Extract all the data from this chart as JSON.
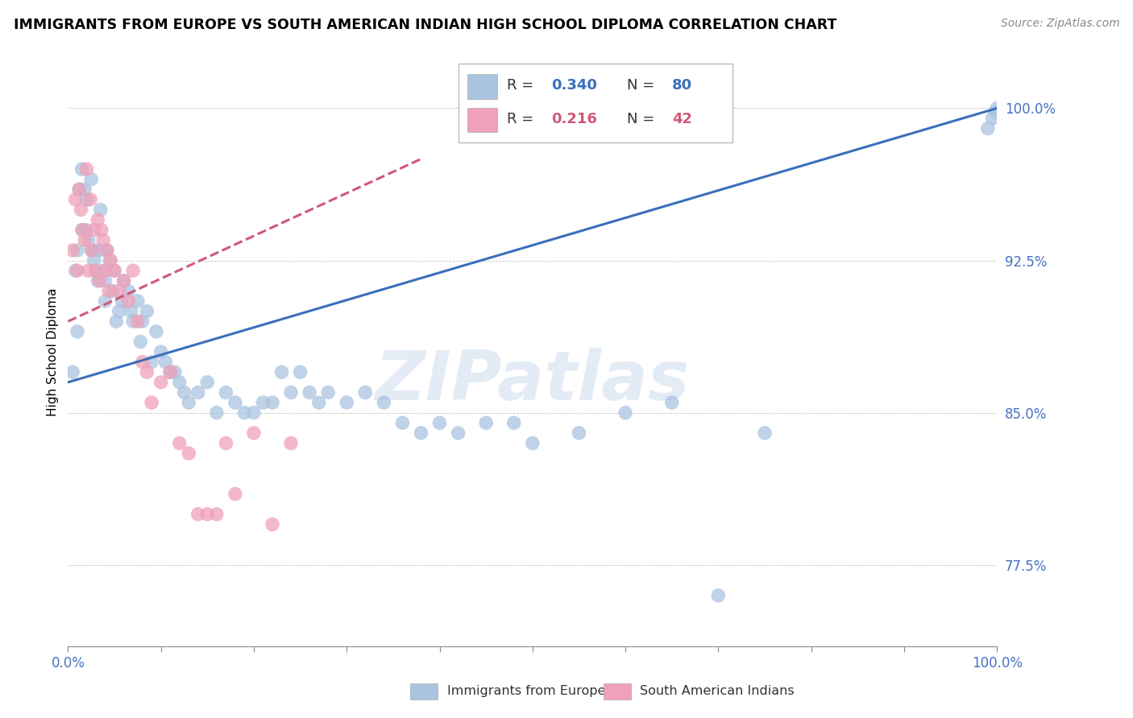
{
  "title": "IMMIGRANTS FROM EUROPE VS SOUTH AMERICAN INDIAN HIGH SCHOOL DIPLOMA CORRELATION CHART",
  "source": "Source: ZipAtlas.com",
  "ylabel": "High School Diploma",
  "xlim": [
    0,
    1.0
  ],
  "ylim": [
    0.735,
    1.025
  ],
  "yticks": [
    0.775,
    0.85,
    0.925,
    1.0
  ],
  "ytick_labels": [
    "77.5%",
    "85.0%",
    "92.5%",
    "100.0%"
  ],
  "blue_R": 0.34,
  "blue_N": 80,
  "pink_R": 0.216,
  "pink_N": 42,
  "blue_color": "#aac4e0",
  "blue_line_color": "#3a6fba",
  "pink_color": "#f0a0b8",
  "pink_line_color": "#d05878",
  "blue_legend": "Immigrants from Europe",
  "pink_legend": "South American Indians",
  "watermark": "ZIPatlas",
  "blue_points_x": [
    0.005,
    0.008,
    0.01,
    0.01,
    0.012,
    0.015,
    0.015,
    0.018,
    0.02,
    0.02,
    0.022,
    0.025,
    0.025,
    0.028,
    0.03,
    0.03,
    0.032,
    0.035,
    0.035,
    0.038,
    0.04,
    0.04,
    0.042,
    0.045,
    0.048,
    0.05,
    0.052,
    0.055,
    0.058,
    0.06,
    0.065,
    0.068,
    0.07,
    0.075,
    0.078,
    0.08,
    0.085,
    0.09,
    0.095,
    0.1,
    0.105,
    0.11,
    0.115,
    0.12,
    0.125,
    0.13,
    0.14,
    0.15,
    0.16,
    0.17,
    0.18,
    0.19,
    0.2,
    0.21,
    0.22,
    0.23,
    0.24,
    0.25,
    0.26,
    0.27,
    0.28,
    0.3,
    0.32,
    0.34,
    0.36,
    0.38,
    0.4,
    0.42,
    0.45,
    0.48,
    0.5,
    0.55,
    0.6,
    0.65,
    0.7,
    0.75,
    0.99,
    0.995,
    0.998,
    1.0
  ],
  "blue_points_y": [
    0.87,
    0.92,
    0.93,
    0.89,
    0.96,
    0.94,
    0.97,
    0.96,
    0.955,
    0.94,
    0.935,
    0.93,
    0.965,
    0.925,
    0.93,
    0.92,
    0.915,
    0.93,
    0.95,
    0.92,
    0.915,
    0.905,
    0.93,
    0.925,
    0.91,
    0.92,
    0.895,
    0.9,
    0.905,
    0.915,
    0.91,
    0.9,
    0.895,
    0.905,
    0.885,
    0.895,
    0.9,
    0.875,
    0.89,
    0.88,
    0.875,
    0.87,
    0.87,
    0.865,
    0.86,
    0.855,
    0.86,
    0.865,
    0.85,
    0.86,
    0.855,
    0.85,
    0.85,
    0.855,
    0.855,
    0.87,
    0.86,
    0.87,
    0.86,
    0.855,
    0.86,
    0.855,
    0.86,
    0.855,
    0.845,
    0.84,
    0.845,
    0.84,
    0.845,
    0.845,
    0.835,
    0.84,
    0.85,
    0.855,
    0.76,
    0.84,
    0.99,
    0.995,
    0.998,
    1.0
  ],
  "pink_points_x": [
    0.005,
    0.008,
    0.01,
    0.012,
    0.014,
    0.016,
    0.018,
    0.02,
    0.022,
    0.024,
    0.026,
    0.028,
    0.03,
    0.032,
    0.034,
    0.036,
    0.038,
    0.04,
    0.042,
    0.044,
    0.046,
    0.05,
    0.055,
    0.06,
    0.065,
    0.07,
    0.075,
    0.08,
    0.085,
    0.09,
    0.1,
    0.11,
    0.12,
    0.13,
    0.14,
    0.15,
    0.16,
    0.17,
    0.18,
    0.2,
    0.22,
    0.24
  ],
  "pink_points_y": [
    0.93,
    0.955,
    0.92,
    0.96,
    0.95,
    0.94,
    0.935,
    0.97,
    0.92,
    0.955,
    0.93,
    0.94,
    0.92,
    0.945,
    0.915,
    0.94,
    0.935,
    0.92,
    0.93,
    0.91,
    0.925,
    0.92,
    0.91,
    0.915,
    0.905,
    0.92,
    0.895,
    0.875,
    0.87,
    0.855,
    0.865,
    0.87,
    0.835,
    0.83,
    0.8,
    0.8,
    0.8,
    0.835,
    0.81,
    0.84,
    0.795,
    0.835
  ]
}
